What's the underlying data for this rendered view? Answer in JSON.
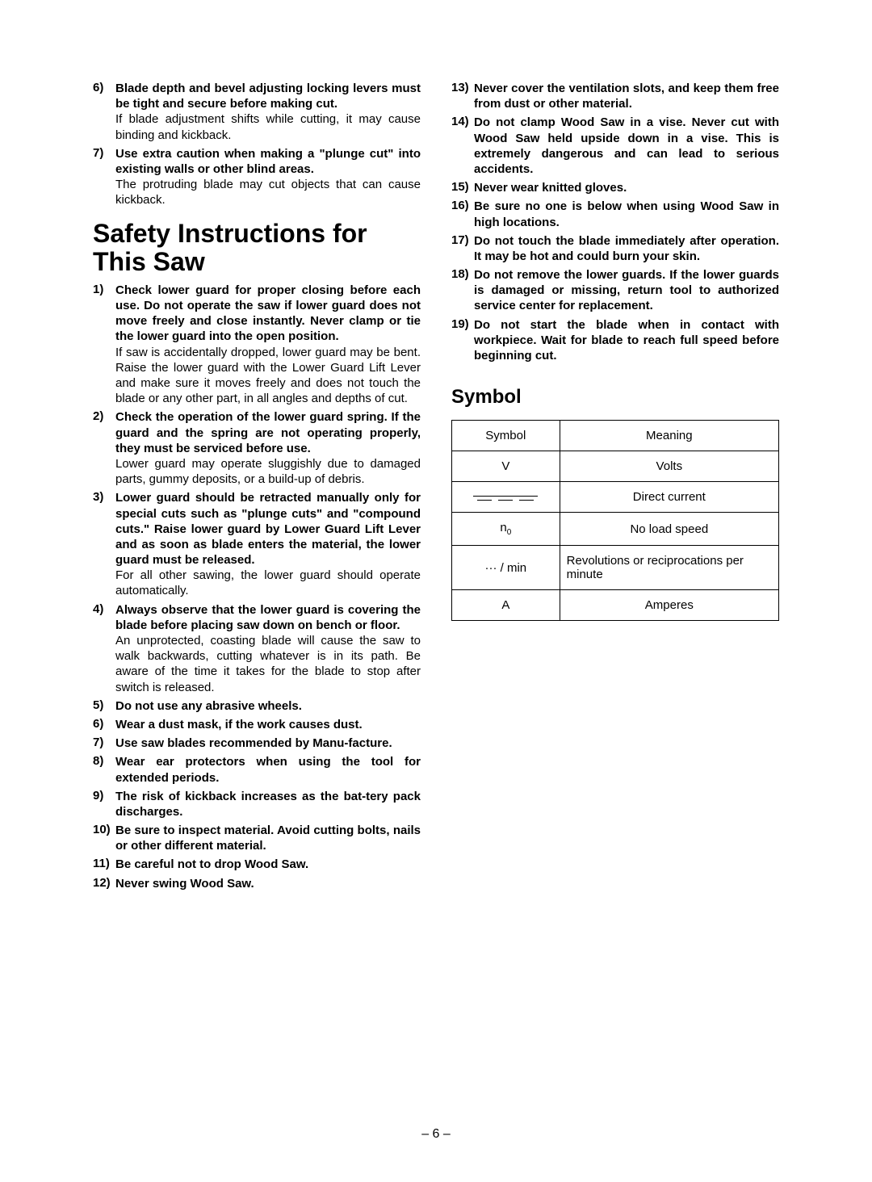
{
  "left_col": {
    "pre_items": [
      {
        "num": "6)",
        "bold": "Blade depth and bevel adjusting locking levers must be tight and secure before making cut.",
        "normal": "If blade adjustment shifts while cutting, it may cause binding and kickback."
      },
      {
        "num": "7)",
        "bold": "Use extra caution when making a \"plunge cut\" into existing walls or other blind areas.",
        "normal": "The protruding blade may cut objects that can cause kickback."
      }
    ],
    "heading": "Safety Instructions for This Saw",
    "items": [
      {
        "num": "1)",
        "bold": "Check lower guard for proper closing before each use. Do not operate the saw if lower guard does not move freely and close instantly. Never clamp or tie the lower guard into the open position.",
        "normal": "If saw is accidentally dropped, lower guard may be bent. Raise the lower guard with the Lower Guard Lift Lever and make sure it moves freely and does not touch the blade or any other part, in all angles and depths of cut."
      },
      {
        "num": "2)",
        "bold": "Check the operation of the lower guard spring. If the guard and the spring are not operating properly, they must be serviced before use.",
        "normal": "Lower guard may operate sluggishly due to damaged parts, gummy deposits, or a build-up of debris."
      },
      {
        "num": "3)",
        "bold": "Lower guard should be retracted manually only for special cuts such as \"plunge cuts\" and \"compound cuts.\" Raise lower guard by Lower Guard Lift Lever and as soon as blade enters the material, the lower guard must be released.",
        "normal": "For all other sawing, the lower guard should operate automatically."
      },
      {
        "num": "4)",
        "bold": "Always observe that the lower guard is covering the blade before placing saw down on bench or floor.",
        "normal": "An unprotected, coasting blade will cause the saw to walk backwards, cutting whatever is in its path. Be aware of the time it takes for the blade to stop after switch is released."
      },
      {
        "num": "5)",
        "bold": "Do not use any abrasive wheels.",
        "normal": ""
      },
      {
        "num": "6)",
        "bold": "Wear a dust mask, if the work causes dust.",
        "normal": ""
      },
      {
        "num": "7)",
        "bold": "Use saw blades recommended by Manu-facture.",
        "normal": ""
      },
      {
        "num": "8)",
        "bold": "Wear ear protectors when using the tool for extended periods.",
        "normal": ""
      },
      {
        "num": "9)",
        "bold": "The risk of kickback increases as the bat-tery pack discharges.",
        "normal": ""
      },
      {
        "num": "10)",
        "bold": "Be sure to inspect material. Avoid cutting bolts, nails or other different material.",
        "normal": ""
      },
      {
        "num": "11)",
        "bold": "Be careful not to drop Wood Saw.",
        "normal": ""
      },
      {
        "num": "12)",
        "bold": "Never swing Wood Saw.",
        "normal": ""
      }
    ]
  },
  "right_col": {
    "items": [
      {
        "num": "13)",
        "bold": "Never cover the ventilation slots, and keep them free from dust or other material.",
        "normal": ""
      },
      {
        "num": "14)",
        "bold": "Do not clamp Wood Saw in a vise. Never cut with Wood Saw held upside down in a vise. This is extremely dangerous and can lead to serious accidents.",
        "normal": ""
      },
      {
        "num": "15)",
        "bold": "Never wear knitted gloves.",
        "normal": ""
      },
      {
        "num": "16)",
        "bold": "Be sure no one is below when using Wood Saw in high locations.",
        "normal": ""
      },
      {
        "num": "17)",
        "bold": "Do not touch the blade immediately after operation. It may be hot and could burn your skin.",
        "normal": ""
      },
      {
        "num": "18)",
        "bold": "Do not remove the lower guards. If the lower guards is damaged or missing, return tool to authorized service center for replacement.",
        "normal": ""
      },
      {
        "num": "19)",
        "bold": "Do not start the blade when in contact with workpiece. Wait for blade to reach full speed before beginning cut.",
        "normal": ""
      }
    ],
    "symbol_heading": "Symbol",
    "table": {
      "header": [
        "Symbol",
        "Meaning"
      ],
      "rows": [
        {
          "symbol": "V",
          "meaning": "Volts"
        },
        {
          "symbol": "dc",
          "meaning": "Direct current"
        },
        {
          "symbol": "n₀",
          "meaning": "No load speed"
        },
        {
          "symbol": "··· / min",
          "meaning": "Revolutions or reciprocations per minute",
          "left_align": true
        },
        {
          "symbol": "A",
          "meaning": "Amperes"
        }
      ]
    }
  },
  "page_num": "– 6 –"
}
